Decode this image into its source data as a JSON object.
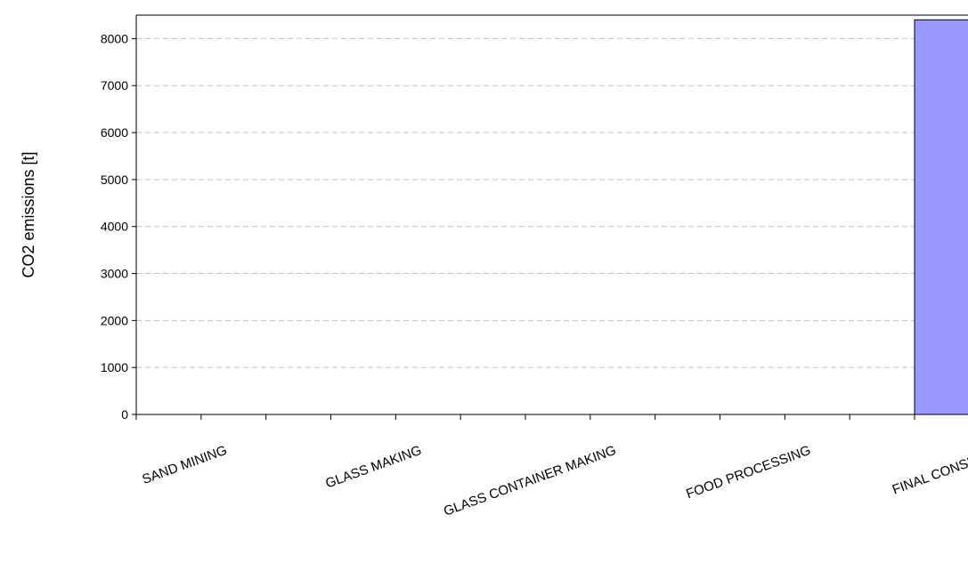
{
  "chart_data": {
    "type": "bar",
    "categories": [
      "SAND MINING",
      "GLASS MAKING",
      "GLASS CONTAINER MAKING",
      "FOOD PROCESSING",
      "FINAL CONSUMER"
    ],
    "values": [
      0,
      0,
      0,
      0,
      8400
    ],
    "title": "",
    "xlabel": "",
    "ylabel": "CO2 emissions [t]",
    "ylim": [
      0,
      8500
    ],
    "yticks": [
      0,
      1000,
      2000,
      3000,
      4000,
      5000,
      6000,
      7000,
      8000
    ],
    "grid": true,
    "bar_color": "#9999ff",
    "bar_edge_color": "#000000",
    "grid_color": "#c0c0c0"
  }
}
